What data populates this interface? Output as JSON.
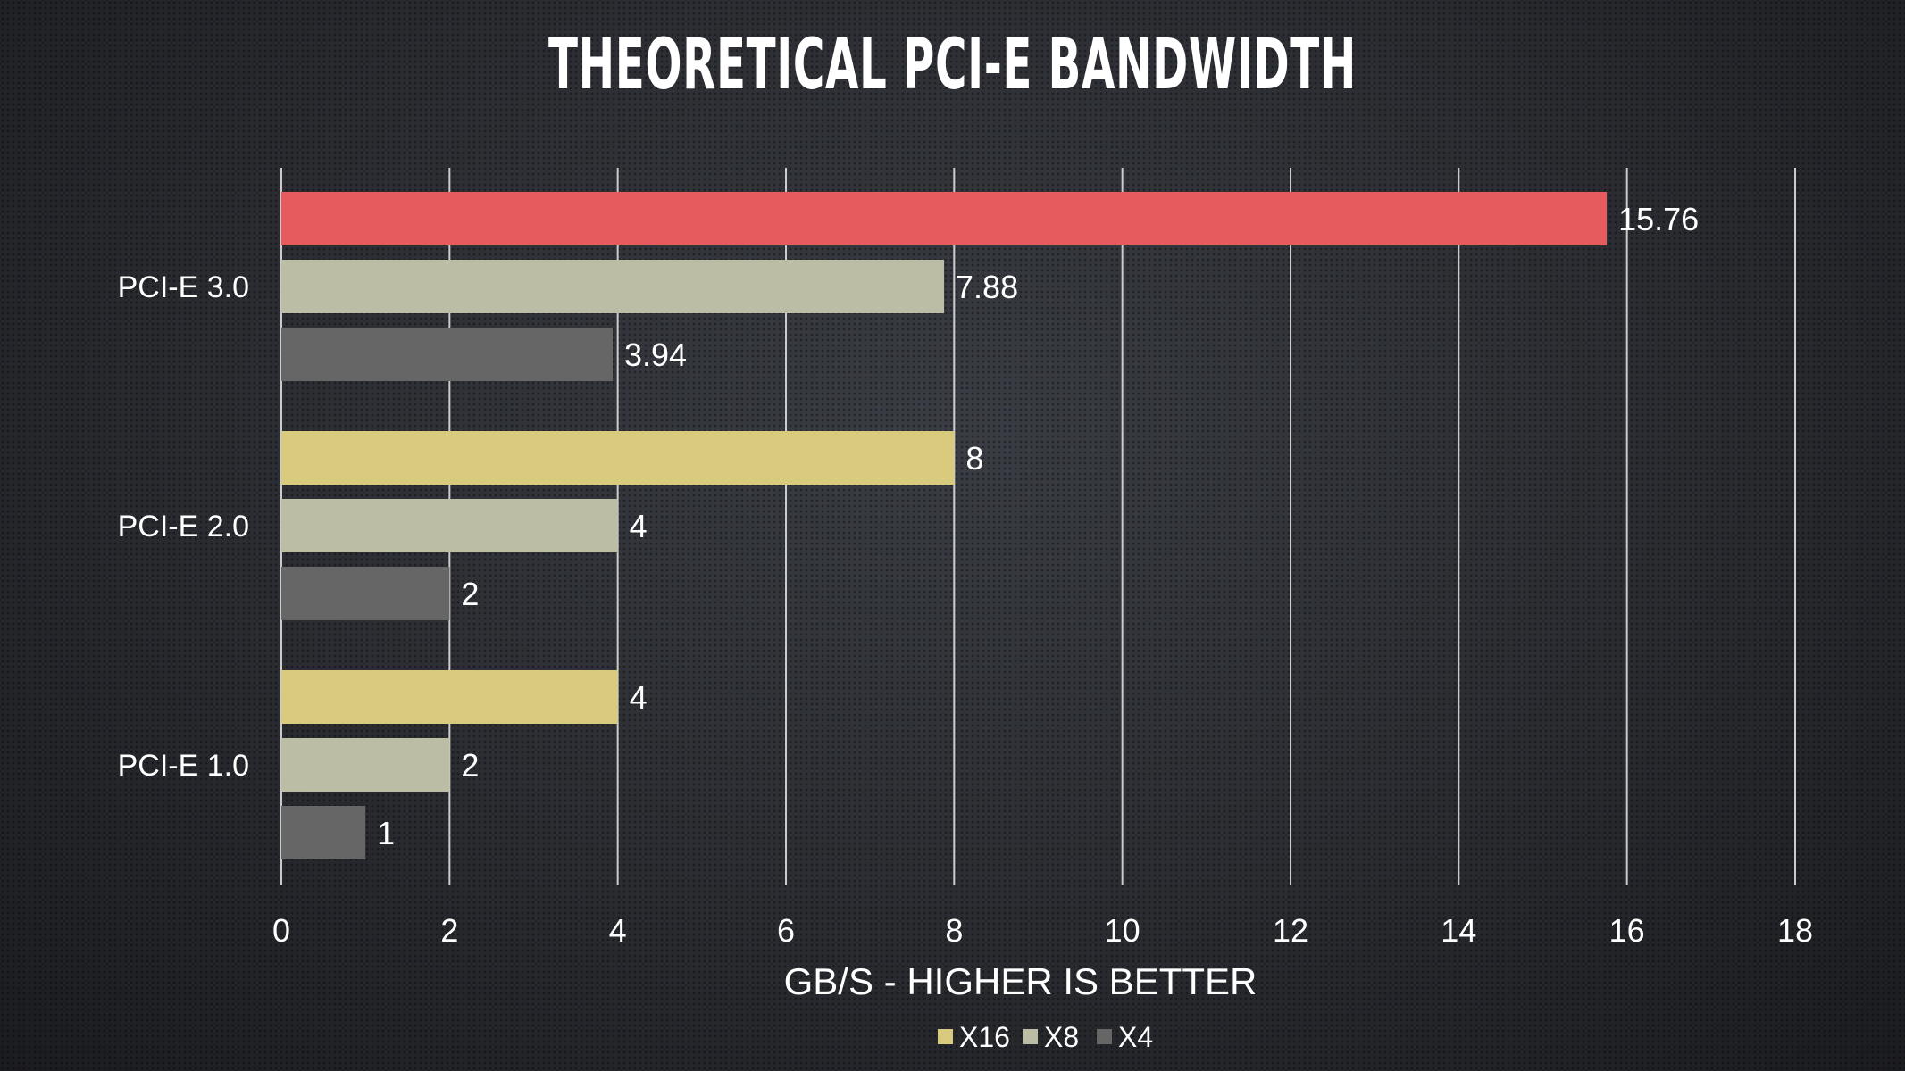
{
  "chart_data": {
    "type": "bar",
    "orientation": "horizontal",
    "title": "THEORETICAL PCI-E BANDWIDTH",
    "xlabel": "GB/S - HIGHER IS BETTER",
    "ylabel": "",
    "categories": [
      "PCI-E 3.0",
      "PCI-E 2.0",
      "PCI-E 1.0"
    ],
    "series": [
      {
        "name": "X16",
        "color": "#d8cb7e",
        "values": [
          15.76,
          8,
          4
        ],
        "value_labels": [
          "15.76",
          "8",
          "4"
        ]
      },
      {
        "name": "X8",
        "color": "#bcbda5",
        "values": [
          7.88,
          4,
          2
        ],
        "value_labels": [
          "7.88",
          "4",
          "2"
        ]
      },
      {
        "name": "X4",
        "color": "#666666",
        "values": [
          3.94,
          2,
          1
        ],
        "value_labels": [
          "3.94",
          "2",
          "1"
        ]
      }
    ],
    "highlight": {
      "category": "PCI-E 3.0",
      "series": "X16",
      "color": "#e55b5e"
    },
    "xlim": [
      0,
      18
    ],
    "xticks": [
      "0",
      "2",
      "4",
      "6",
      "8",
      "10",
      "12",
      "14",
      "16",
      "18"
    ],
    "grid": "vertical",
    "legend": "bottom-center"
  }
}
